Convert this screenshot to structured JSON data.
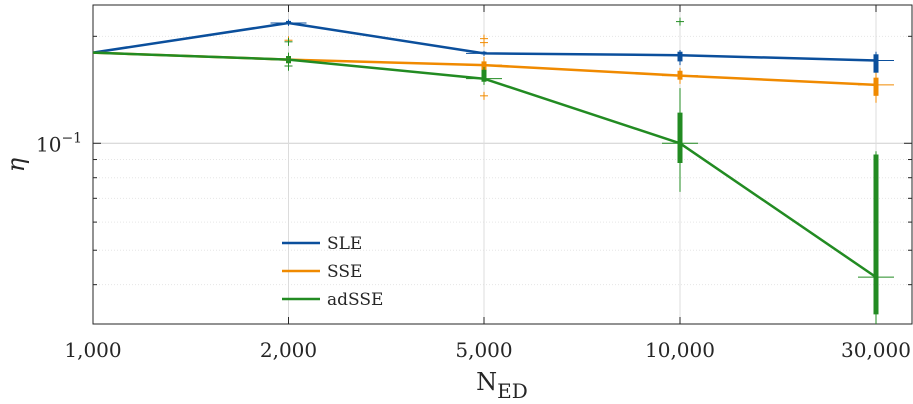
{
  "chart_data": {
    "type": "line",
    "title": "",
    "xlabel": "N",
    "xlabel_subscript": "ED",
    "ylabel": "η",
    "x_categories": [
      "1,000",
      "2,000",
      "5,000",
      "10,000",
      "30,000"
    ],
    "y_scale": "log",
    "ylim": [
      0.031,
      0.245
    ],
    "y_tick_label": {
      "base": "10",
      "exponent": "−1",
      "value": 0.1
    },
    "grid": true,
    "legend_position": "lower-left",
    "series": [
      {
        "name": "SLE",
        "color": "#0b4f9c",
        "values": [
          0.18,
          0.218,
          0.179,
          0.177,
          0.171
        ]
      },
      {
        "name": "SSE",
        "color": "#f08a00",
        "values": [
          0.18,
          0.172,
          0.166,
          0.155,
          0.146
        ]
      },
      {
        "name": "adSSE",
        "color": "#228b22",
        "values": [
          0.18,
          0.172,
          0.152,
          0.1,
          0.042
        ]
      }
    ],
    "boxplots": [
      {
        "series": "SLE",
        "x_index": 1,
        "median": 0.218,
        "q1": 0.216,
        "q3": 0.221,
        "whisker_low": 0.214,
        "whisker_high": 0.223,
        "outliers": []
      },
      {
        "series": "SLE",
        "x_index": 2,
        "median": 0.179,
        "q1": 0.178,
        "q3": 0.181,
        "whisker_low": 0.176,
        "whisker_high": 0.182,
        "outliers": []
      },
      {
        "series": "SLE",
        "x_index": 3,
        "median": 0.177,
        "q1": 0.17,
        "q3": 0.181,
        "whisker_low": 0.166,
        "whisker_high": 0.183,
        "outliers": []
      },
      {
        "series": "SLE",
        "x_index": 4,
        "median": 0.171,
        "q1": 0.158,
        "q3": 0.178,
        "whisker_low": 0.15,
        "whisker_high": 0.181,
        "outliers": []
      },
      {
        "series": "SSE",
        "x_index": 1,
        "median": 0.172,
        "q1": 0.168,
        "q3": 0.176,
        "whisker_low": 0.166,
        "whisker_high": 0.178,
        "outliers": [
          0.195
        ]
      },
      {
        "series": "SSE",
        "x_index": 2,
        "median": 0.166,
        "q1": 0.16,
        "q3": 0.17,
        "whisker_low": 0.15,
        "whisker_high": 0.175,
        "outliers": [
          0.192,
          0.197,
          0.136
        ]
      },
      {
        "series": "SSE",
        "x_index": 3,
        "median": 0.155,
        "q1": 0.151,
        "q3": 0.16,
        "whisker_low": 0.147,
        "whisker_high": 0.163,
        "outliers": []
      },
      {
        "series": "SSE",
        "x_index": 4,
        "median": 0.146,
        "q1": 0.136,
        "q3": 0.153,
        "whisker_low": 0.13,
        "whisker_high": 0.158,
        "outliers": []
      },
      {
        "series": "adSSE",
        "x_index": 1,
        "median": 0.172,
        "q1": 0.168,
        "q3": 0.176,
        "whisker_low": 0.16,
        "whisker_high": 0.18,
        "outliers": [
          0.193,
          0.165
        ]
      },
      {
        "series": "adSSE",
        "x_index": 2,
        "median": 0.152,
        "q1": 0.149,
        "q3": 0.161,
        "whisker_low": 0.146,
        "whisker_high": 0.164,
        "outliers": []
      },
      {
        "series": "adSSE",
        "x_index": 3,
        "median": 0.1,
        "q1": 0.088,
        "q3": 0.122,
        "whisker_low": 0.073,
        "whisker_high": 0.143,
        "outliers": [
          0.22
        ]
      },
      {
        "series": "adSSE",
        "x_index": 4,
        "median": 0.042,
        "q1": 0.033,
        "q3": 0.093,
        "whisker_low": 0.031,
        "whisker_high": 0.095,
        "outliers": []
      }
    ]
  }
}
